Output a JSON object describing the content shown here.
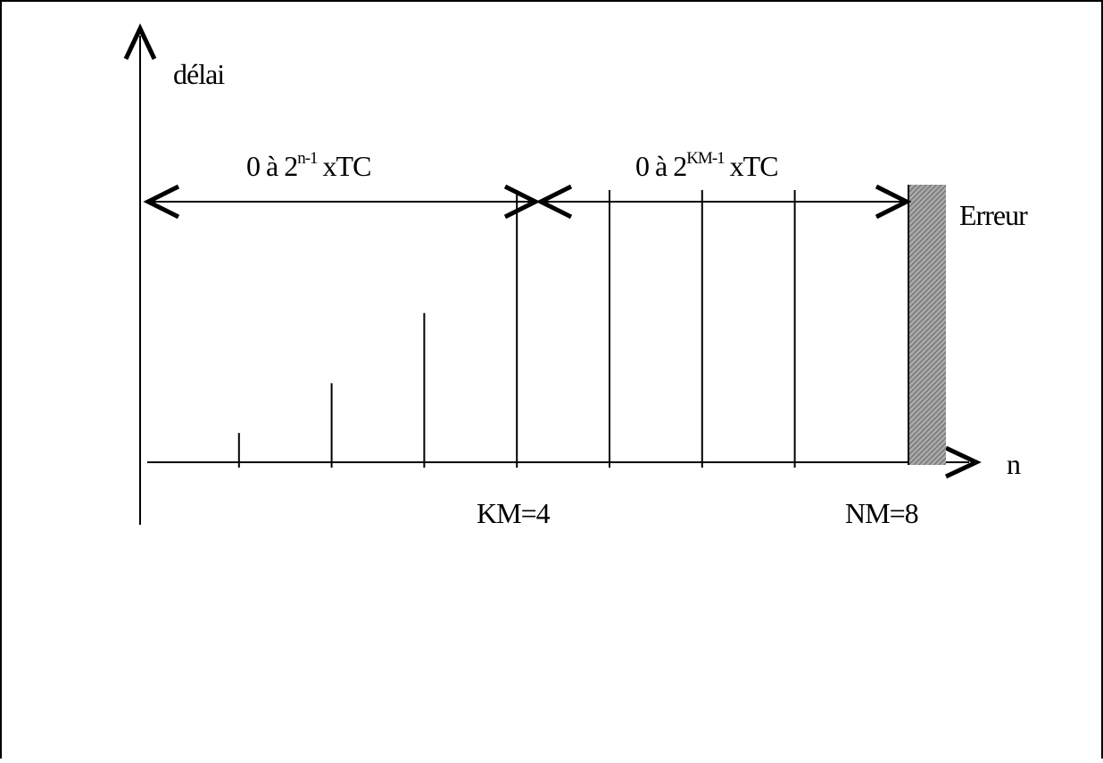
{
  "diagram": {
    "y_axis_label": "délai",
    "x_axis_label": "n",
    "range_left": {
      "prefix": "0 à 2",
      "exponent": "n-1",
      "suffix": "xTC"
    },
    "range_right": {
      "prefix": "0 à 2",
      "exponent": "KM-1",
      "suffix": "xTC"
    },
    "error_label": "Erreur",
    "km_label": "KM=4",
    "nm_label": "NM=8",
    "bars": [
      {
        "n": 1,
        "level": 0.1
      },
      {
        "n": 2,
        "level": 0.27
      },
      {
        "n": 3,
        "level": 0.51
      },
      {
        "n": 4,
        "level": 0.93
      },
      {
        "n": 5,
        "level": 0.93
      },
      {
        "n": 6,
        "level": 0.93
      },
      {
        "n": 7,
        "level": 0.93
      }
    ],
    "colors": {
      "line": "#000000",
      "error_fill": "#a8a8a8",
      "error_hatch": "#555555"
    }
  }
}
